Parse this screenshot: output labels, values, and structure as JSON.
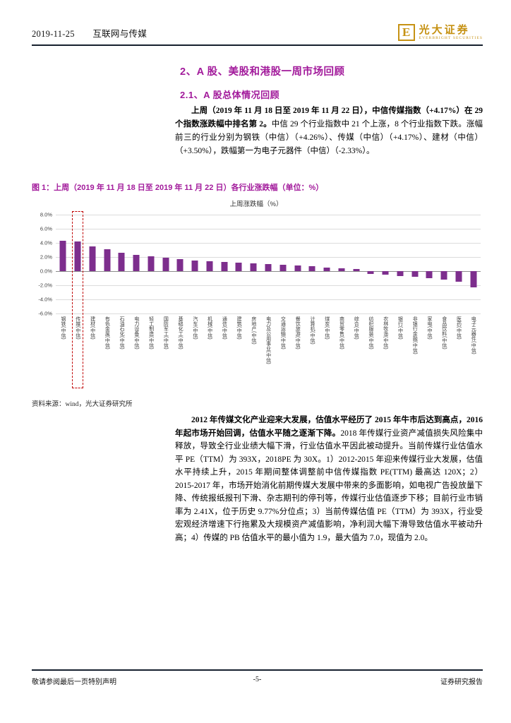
{
  "header": {
    "date": "2019-11-25",
    "category": "互联网与传媒",
    "brand": {
      "logo_letter": "E",
      "name_cn": "光大证券",
      "name_en": "EVERBRIGHT SECURITIES"
    }
  },
  "section": {
    "title": "2、A 股、美股和港股一周市场回顾",
    "subtitle": "2.1、A 股总体情况回顾"
  },
  "para1": {
    "bold": "上周（2019 年 11 月 18 日至 2019 年 11 月 22 日），中信传媒指数（+4.17%）在 29 个指数涨跌幅中排名第 2。",
    "regular": "中信 29 个行业指数中 21 个上涨，8 个行业指数下跌。涨幅前三的行业分别为钢铁（中信）（+4.26%）、传媒（中信）（+4.17%）、建材（中信）（+3.50%），跌幅第一为电子元器件（中信）（-2.33%）。"
  },
  "figure": {
    "caption": "图 1：上周（2019 年 11 月 18 日至 2019 年 11 月 22 日）各行业涨跌幅（单位：%）",
    "source": "资料来源：wind，光大证券研究所"
  },
  "chart_data": {
    "type": "bar",
    "title": "上周涨跌幅（%）",
    "ylim": [
      -6,
      8
    ],
    "grid": true,
    "bar_color": "#7d2e8d",
    "highlight_index": 1,
    "highlight_box_color": "#c00000",
    "yticks": [
      {
        "value": 8,
        "label": "8.0%"
      },
      {
        "value": 6,
        "label": "6.0%"
      },
      {
        "value": 4,
        "label": "4.0%"
      },
      {
        "value": 2,
        "label": "2.0%"
      },
      {
        "value": 0,
        "label": "0.0%"
      },
      {
        "value": -2,
        "label": "-2.0%"
      },
      {
        "value": -4,
        "label": "-4.0%"
      },
      {
        "value": -6,
        "label": "-6.0%"
      }
    ],
    "categories": [
      "钢铁(中信)",
      "传媒(中信)",
      "建材(中信)",
      "有色金属(中信)",
      "石油石化(中信)",
      "电力设备(中信)",
      "轻工制造(中信)",
      "国防军工(中信)",
      "基础化工(中信)",
      "汽车(中信)",
      "机械(中信)",
      "通信(中信)",
      "建筑(中信)",
      "房地产(中信)",
      "电力及公用事业(中信)",
      "交通运输(中信)",
      "餐饮旅游(中信)",
      "计算机(中信)",
      "煤炭(中信)",
      "商贸零售(中信)",
      "综合(中信)",
      "纺织服装(中信)",
      "农林牧渔(中信)",
      "银行(中信)",
      "非银行金融(中信)",
      "家电(中信)",
      "食品饮料(中信)",
      "医药(中信)",
      "电子元器件(中信)"
    ],
    "values": [
      4.26,
      4.17,
      3.5,
      3.1,
      2.6,
      2.3,
      2.1,
      1.9,
      1.7,
      1.5,
      1.4,
      1.3,
      1.2,
      1.1,
      1.0,
      0.9,
      0.8,
      0.7,
      0.5,
      0.4,
      0.3,
      -0.4,
      -0.5,
      -0.7,
      -0.8,
      -1.0,
      -1.2,
      -1.5,
      -2.33
    ]
  },
  "para2": {
    "bold": "2012 年传媒文化产业迎来大发展，估值水平经历了 2015 年牛市后达到高点，2016 年起市场开始回调，估值水平随之逐渐下降。",
    "regular": "2018 年传媒行业资产减值损失风险集中释放，导致全行业业绩大幅下滑，行业估值水平因此被动提升。当前传媒行业估值水平 PE（TTM）为 393X，2018PE 为 30X。1）2012-2015 年迎来传媒行业大发展，估值水平持续上升，2015 年期间整体调整前中信传媒指数 PE(TTM) 最高达 120X；2）2015-2017 年，市场开始消化前期传媒大发展中带来的多面影响，如电视广告投放量下降、传统报纸报刊下滑、杂志期刊的停刊等，传媒行业估值逐步下移；目前行业市销率为 2.41X，位于历史 9.77%分位点；3）当前传媒估值 PE（TTM）为 393X，行业受宏观经济增速下行拖累及大规模资产减值影响，净利润大幅下滑导致估值水平被动升高；4）传媒的 PB 估值水平的最小值为 1.9，最大值为 7.0，现值为 2.0。"
  },
  "footer": {
    "left": "敬请参阅最后一页特别声明",
    "page": "-5-",
    "right": "证券研究报告"
  }
}
